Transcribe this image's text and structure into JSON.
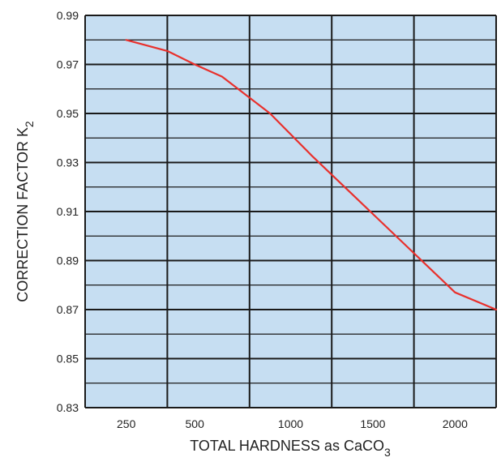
{
  "chart_data": {
    "type": "line",
    "title": "",
    "xlabel": "TOTAL HARDNESS as CaCO",
    "xlabel_subscript": "3",
    "ylabel": "CORRECTION FACTOR K",
    "ylabel_subscript": "2",
    "x_ticks": [
      "250",
      "500",
      "1000",
      "1500",
      "2000"
    ],
    "y_ticks": [
      "0.99",
      "0.97",
      "0.95",
      "0.93",
      "0.91",
      "0.89",
      "0.87",
      "0.85",
      "0.83"
    ],
    "ylim": [
      0.83,
      0.99
    ],
    "grid": true,
    "series": [
      {
        "values": [
          {
            "x": 250,
            "y": 0.98
          },
          {
            "x": 375,
            "y": 0.9755
          },
          {
            "x": 500,
            "y": 0.97
          },
          {
            "x": 625,
            "y": 0.965
          },
          {
            "x": 875,
            "y": 0.95
          },
          {
            "x": 1125,
            "y": 0.933
          },
          {
            "x": 1375,
            "y": 0.917
          },
          {
            "x": 1500,
            "y": 0.909
          },
          {
            "x": 1750,
            "y": 0.893
          },
          {
            "x": 2000,
            "y": 0.877
          },
          {
            "x": 2250,
            "y": 0.87
          }
        ]
      }
    ],
    "colors": {
      "plot_background": "#c6def2",
      "grid": "#1a1a1a",
      "line": "#e8302c"
    }
  }
}
